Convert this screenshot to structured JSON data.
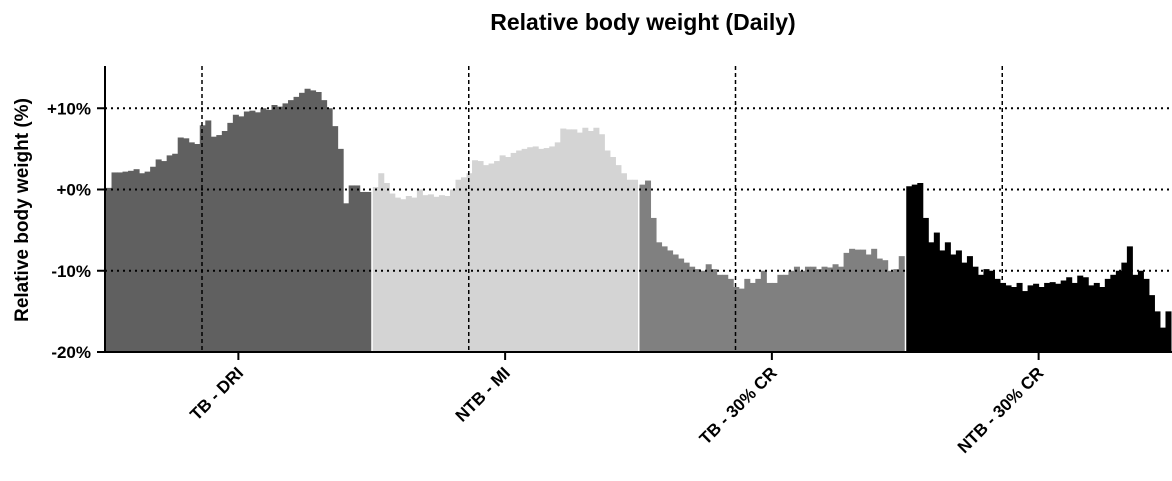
{
  "chart_data": {
    "type": "grouped-daily-bar",
    "title": "Relative body weight (Daily)",
    "y_label": "Relative body weight (%)",
    "ylim": [
      -20,
      15.2
    ],
    "yticks": [
      {
        "value": -20,
        "label": "-20%"
      },
      {
        "value": -10,
        "label": "-10%"
      },
      {
        "value": 0,
        "label": "+0%"
      },
      {
        "value": 10,
        "label": "+10%"
      }
    ],
    "grid": true,
    "groups": [
      {
        "name": "TB - DRI",
        "color": "#606060",
        "values": [
          0.2,
          2.1,
          2.1,
          2.2,
          2.3,
          2.5,
          2.0,
          2.2,
          2.8,
          3.7,
          3.5,
          4.2,
          4.4,
          6.4,
          6.3,
          5.8,
          5.6,
          7.9,
          8.5,
          6.5,
          6.7,
          7.2,
          8.2,
          9.2,
          9.0,
          9.6,
          9.7,
          9.5,
          10.0,
          9.8,
          10.4,
          10.2,
          10.6,
          11.0,
          11.4,
          11.9,
          12.4,
          12.2,
          12.0,
          11.0,
          10.0,
          7.8,
          5.0,
          -1.7,
          0.5,
          0.5,
          -0.3,
          -0.3
        ]
      },
      {
        "name": "NTB - MI",
        "color": "#d4d4d4",
        "values": [
          0.3,
          2.0,
          0.8,
          -0.5,
          -1.0,
          -1.2,
          -0.8,
          -1.0,
          0.0,
          -0.7,
          -0.6,
          -0.9,
          -0.7,
          -0.8,
          0.0,
          1.2,
          1.5,
          2.0,
          3.6,
          3.5,
          3.0,
          3.2,
          3.5,
          4.2,
          4.0,
          4.5,
          4.8,
          5.0,
          5.2,
          5.3,
          5.0,
          5.1,
          5.3,
          5.8,
          7.5,
          7.4,
          7.4,
          7.0,
          7.6,
          7.2,
          7.6,
          6.8,
          4.8,
          4.0,
          3.0,
          2.0,
          1.2,
          1.2
        ]
      },
      {
        "name": "TB - 30% CR",
        "color": "#808080",
        "values": [
          0.6,
          1.1,
          -3.5,
          -6.5,
          -7.0,
          -7.5,
          -8.0,
          -8.5,
          -9.0,
          -9.5,
          -9.8,
          -10.0,
          -9.2,
          -9.8,
          -10.5,
          -10.5,
          -11.0,
          -12.0,
          -12.2,
          -11.0,
          -11.5,
          -11.0,
          -10.0,
          -11.5,
          -11.5,
          -10.5,
          -10.5,
          -10.0,
          -9.5,
          -10.0,
          -9.5,
          -9.5,
          -9.8,
          -9.5,
          -9.6,
          -9.2,
          -9.5,
          -7.8,
          -7.3,
          -7.4,
          -7.4,
          -8.0,
          -7.3,
          -8.5,
          -8.7,
          -10.0,
          -9.8,
          -8.2
        ]
      },
      {
        "name": "NTB - 30% CR",
        "color": "#000000",
        "values": [
          0.4,
          0.6,
          0.8,
          -3.5,
          -6.5,
          -5.3,
          -7.5,
          -6.5,
          -8.0,
          -7.5,
          -9.0,
          -8.2,
          -9.5,
          -10.5,
          -9.8,
          -10.0,
          -11.0,
          -11.5,
          -11.8,
          -12.0,
          -11.5,
          -12.5,
          -11.8,
          -11.6,
          -12.0,
          -11.5,
          -11.4,
          -11.6,
          -11.2,
          -10.8,
          -11.5,
          -10.6,
          -10.8,
          -11.8,
          -11.5,
          -12.0,
          -11.0,
          -10.5,
          -10.0,
          -9.0,
          -7.0,
          -10.5,
          -10.0,
          -11.0,
          -13.0,
          -15.0,
          -17.0,
          -15.0
        ]
      }
    ]
  }
}
